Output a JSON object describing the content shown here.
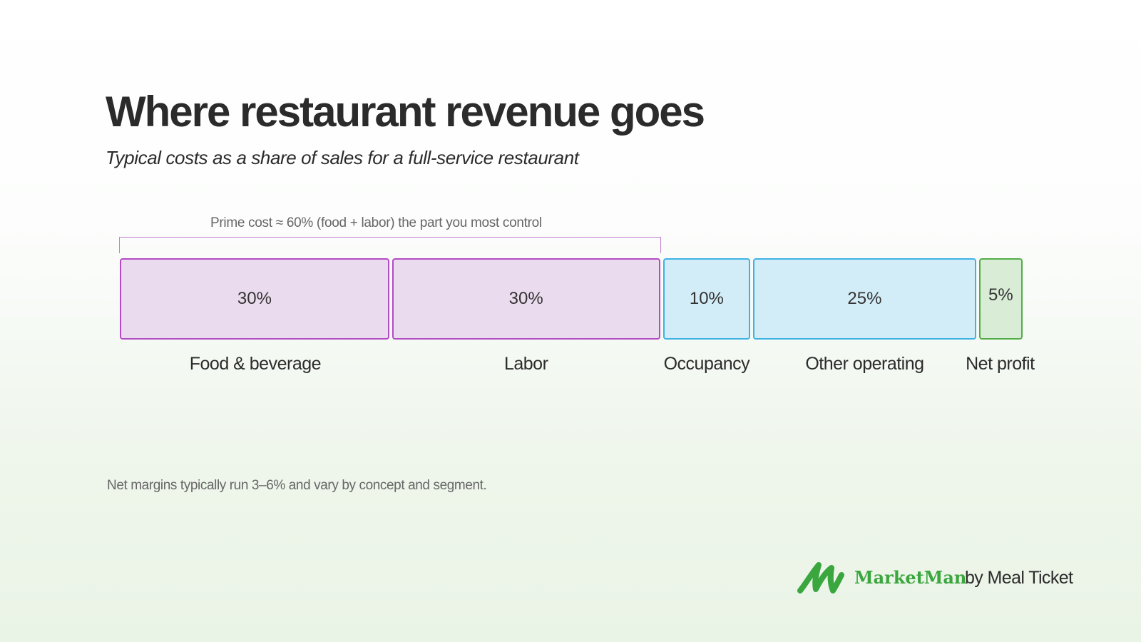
{
  "title": "Where restaurant revenue goes",
  "subtitle": "Typical costs as a share of sales for a full-service restaurant",
  "annotation": "Prime cost ≈ 60% (food + labor) the part you most control",
  "footnote": "Net margins typically run 3–6% and vary by concept and segment.",
  "logo": {
    "brand": "MarketMan",
    "by": "by Meal Ticket",
    "brand_color": "#3aa63e"
  },
  "colors": {
    "prime_fill": "#ebdbee",
    "prime_border": "#b24cc4",
    "overhead_fill": "#d3edf8",
    "overhead_border": "#3fb2e4",
    "profit_fill": "#d9ecd6",
    "profit_border": "#52ad48"
  },
  "chart_data": {
    "type": "bar",
    "orientation": "horizontal-stacked",
    "title": "Where restaurant revenue goes",
    "subtitle": "Typical costs as a share of sales for a full-service restaurant",
    "categories": [
      "Food & beverage",
      "Labor",
      "Occupancy",
      "Other operating",
      "Net profit"
    ],
    "values": [
      30,
      30,
      10,
      25,
      5
    ],
    "value_labels": [
      "30%",
      "30%",
      "10%",
      "25%",
      "5%"
    ],
    "groups": [
      "prime",
      "prime",
      "overhead",
      "overhead",
      "profit"
    ],
    "total": 100,
    "annotations": [
      {
        "text": "Prime cost ≈ 60% (food + labor) the part you most control",
        "spans": [
          "Food & beverage",
          "Labor"
        ]
      }
    ]
  }
}
